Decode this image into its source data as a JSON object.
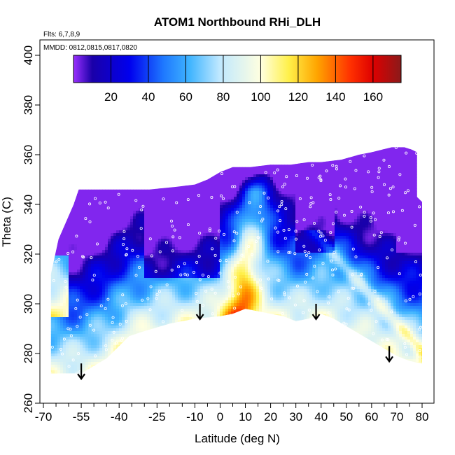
{
  "chart_data": {
    "type": "heatmap",
    "title": "ATOM1 Northbound RHi_DLH",
    "subtitle_lines": [
      "Flts: 6,7,8,9",
      "MMDD: 0812,0815,0817,0820"
    ],
    "xlabel": "Latitude (deg N)",
    "ylabel": "Theta (C)",
    "xlim": [
      -70,
      82
    ],
    "ylim": [
      260,
      400
    ],
    "x_ticks_major": [
      -70,
      -55,
      -40,
      -25,
      -10,
      0,
      10,
      20,
      30,
      40,
      50,
      60,
      70,
      80
    ],
    "x_ticks_minor": [
      -65,
      -60,
      -50,
      -45,
      -35,
      -30,
      -20,
      -15,
      -5,
      5,
      15,
      25,
      35,
      45,
      55,
      65,
      75
    ],
    "y_ticks": [
      260,
      280,
      300,
      320,
      340,
      360,
      380,
      400
    ],
    "colorbar": {
      "range": [
        0,
        175
      ],
      "ticks": [
        20,
        40,
        60,
        80,
        100,
        120,
        140,
        160
      ],
      "stops": [
        {
          "v": 0,
          "c": "#9b30ff"
        },
        {
          "v": 10,
          "c": "#1a00a8"
        },
        {
          "v": 30,
          "c": "#0000ee"
        },
        {
          "v": 48,
          "c": "#1e78ff"
        },
        {
          "v": 62,
          "c": "#3fb4ff"
        },
        {
          "v": 78,
          "c": "#bfe8ff"
        },
        {
          "v": 100,
          "c": "#ffffe0"
        },
        {
          "v": 115,
          "c": "#fff04a"
        },
        {
          "v": 130,
          "c": "#ffa500"
        },
        {
          "v": 148,
          "c": "#ff3000"
        },
        {
          "v": 160,
          "c": "#dd0000"
        },
        {
          "v": 175,
          "c": "#8b1a1a"
        }
      ]
    },
    "data_bounds": {
      "upper": [
        [
          -67,
          312
        ],
        [
          -64,
          326
        ],
        [
          -58,
          340
        ],
        [
          -56,
          346
        ],
        [
          -50,
          346
        ],
        [
          -40,
          346
        ],
        [
          -28,
          346
        ],
        [
          -18,
          347
        ],
        [
          -10,
          348
        ],
        [
          -5,
          350
        ],
        [
          0,
          353
        ],
        [
          5,
          355
        ],
        [
          12,
          355
        ],
        [
          20,
          356
        ],
        [
          28,
          356
        ],
        [
          35,
          357
        ],
        [
          40,
          357
        ],
        [
          48,
          358
        ],
        [
          55,
          360
        ],
        [
          60,
          361
        ],
        [
          64,
          362
        ],
        [
          68,
          363
        ],
        [
          73,
          363
        ],
        [
          76,
          362
        ],
        [
          78,
          361
        ],
        [
          78,
          343
        ],
        [
          80,
          341
        ],
        [
          80,
          276
        ]
      ],
      "lower": [
        [
          -67,
          272
        ],
        [
          -60,
          272
        ],
        [
          -55,
          272
        ],
        [
          -50,
          275
        ],
        [
          -45,
          278
        ],
        [
          -40,
          283
        ],
        [
          -36,
          287
        ],
        [
          -30,
          289
        ],
        [
          -20,
          292
        ],
        [
          -10,
          294
        ],
        [
          0,
          295
        ],
        [
          5,
          296
        ],
        [
          10,
          298
        ],
        [
          15,
          297
        ],
        [
          20,
          296
        ],
        [
          25,
          295
        ],
        [
          30,
          293
        ],
        [
          35,
          294
        ],
        [
          40,
          296
        ],
        [
          45,
          294
        ],
        [
          50,
          291
        ],
        [
          55,
          288
        ],
        [
          60,
          285
        ],
        [
          65,
          282
        ],
        [
          70,
          279
        ],
        [
          75,
          277
        ],
        [
          80,
          276
        ]
      ]
    },
    "arrows_lat_theta": [
      [
        -55,
        276
      ],
      [
        -8,
        300
      ],
      [
        38,
        300
      ],
      [
        67,
        283
      ]
    ]
  }
}
